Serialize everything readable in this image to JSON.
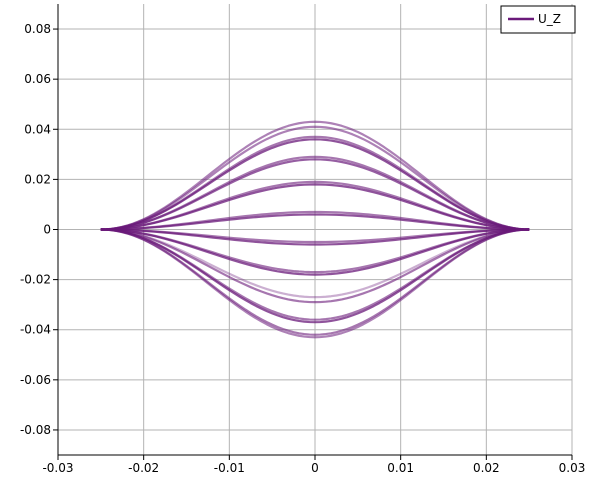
{
  "chart_data": {
    "type": "line",
    "title": "",
    "xlabel": "",
    "ylabel": "",
    "xlim": [
      -0.03,
      0.03
    ],
    "ylim": [
      -0.09,
      0.09
    ],
    "x_ticks": [
      -0.03,
      -0.02,
      -0.01,
      0,
      0.01,
      0.02,
      0.03
    ],
    "x_tick_labels": [
      "-0.03",
      "-0.02",
      "-0.01",
      "0",
      "0.01",
      "0.02",
      "0.03"
    ],
    "y_ticks": [
      -0.08,
      -0.06,
      -0.04,
      -0.02,
      0,
      0.02,
      0.04,
      0.06,
      0.08
    ],
    "y_tick_labels": [
      "-0.08",
      "-0.06",
      "-0.04",
      "-0.02",
      "0",
      "0.02",
      "0.04",
      "0.06",
      "0.08"
    ],
    "grid": true,
    "legend": {
      "position": "top-right",
      "entries": [
        {
          "label": "U_Z",
          "color": "#6a1a7a"
        }
      ]
    },
    "x_range": [
      -0.025,
      0.025
    ],
    "series_color": "#6a1a7a",
    "series": [
      {
        "peak": 0.043,
        "opacity": 0.55
      },
      {
        "peak": 0.041,
        "opacity": 0.55
      },
      {
        "peak": 0.037,
        "opacity": 0.6
      },
      {
        "peak": 0.036,
        "opacity": 0.75
      },
      {
        "peak": 0.029,
        "opacity": 0.6
      },
      {
        "peak": 0.028,
        "opacity": 0.7
      },
      {
        "peak": 0.019,
        "opacity": 0.6
      },
      {
        "peak": 0.018,
        "opacity": 0.75
      },
      {
        "peak": 0.007,
        "opacity": 0.6
      },
      {
        "peak": 0.006,
        "opacity": 0.75
      },
      {
        "peak": -0.005,
        "opacity": 0.6
      },
      {
        "peak": -0.006,
        "opacity": 0.75
      },
      {
        "peak": -0.017,
        "opacity": 0.6
      },
      {
        "peak": -0.018,
        "opacity": 0.75
      },
      {
        "peak": -0.027,
        "opacity": 0.35
      },
      {
        "peak": -0.029,
        "opacity": 0.6
      },
      {
        "peak": -0.036,
        "opacity": 0.6
      },
      {
        "peak": -0.037,
        "opacity": 0.75
      },
      {
        "peak": -0.042,
        "opacity": 0.6
      },
      {
        "peak": -0.043,
        "opacity": 0.55
      }
    ]
  }
}
